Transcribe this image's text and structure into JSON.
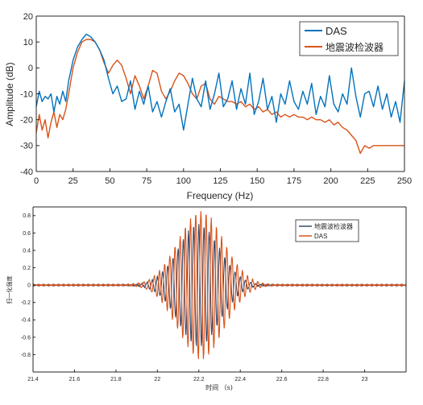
{
  "chart_data": [
    {
      "type": "line",
      "xlabel": "Frequency (Hz)",
      "ylabel": "Amplitude (dB)",
      "xlim": [
        0,
        250
      ],
      "ylim": [
        -40,
        20
      ],
      "xticks": [
        "0",
        "25",
        "50",
        "75",
        "100",
        "125",
        "150",
        "175",
        "200",
        "225",
        "250"
      ],
      "yticks": [
        "20",
        "10",
        "0",
        "-10",
        "-20",
        "-30",
        "-40"
      ],
      "grid": false,
      "legend_position": "top-right",
      "series": [
        {
          "name": "DAS",
          "color": "#0072BD",
          "x": [
            0,
            2,
            4,
            6,
            8,
            10,
            12,
            14,
            16,
            18,
            20,
            22,
            25,
            28,
            31,
            34,
            37,
            40,
            43,
            46,
            49,
            52,
            55,
            58,
            61,
            64,
            67,
            70,
            73,
            76,
            79,
            82,
            85,
            88,
            91,
            94,
            97,
            100,
            103,
            106,
            109,
            112,
            115,
            118,
            121,
            124,
            127,
            130,
            133,
            136,
            139,
            142,
            145,
            148,
            151,
            154,
            157,
            160,
            163,
            166,
            169,
            172,
            175,
            178,
            181,
            184,
            187,
            190,
            193,
            196,
            199,
            202,
            205,
            208,
            211,
            214,
            217,
            220,
            223,
            226,
            229,
            232,
            235,
            238,
            241,
            244,
            247,
            250
          ],
          "y": [
            -15,
            -9,
            -13,
            -11,
            -12,
            -10,
            -17,
            -11,
            -14,
            -9,
            -13,
            -5,
            3,
            8,
            11,
            13,
            12,
            10,
            7,
            3,
            -4,
            -10,
            -7,
            -13,
            -12,
            -5,
            -16,
            -9,
            -14,
            -7,
            -17,
            -13,
            -19,
            -13,
            -8,
            -17,
            -14,
            -24,
            -14,
            -4,
            -12,
            -15,
            -5,
            -16,
            -10,
            -2,
            -15,
            -12,
            -5,
            -16,
            -8,
            -14,
            -2,
            -18,
            -13,
            -4,
            -16,
            -11,
            -21,
            -10,
            -14,
            -5,
            -13,
            -16,
            -9,
            -14,
            -6,
            -18,
            -11,
            -15,
            -3,
            -14,
            -17,
            -10,
            -14,
            0,
            -11,
            -19,
            -10,
            -9,
            -15,
            -7,
            -16,
            -10,
            -19,
            -13,
            -21,
            -5
          ]
        },
        {
          "name": "地震波检波器",
          "color": "#D95319",
          "x": [
            0,
            2,
            4,
            6,
            8,
            10,
            12,
            14,
            16,
            18,
            20,
            22,
            25,
            28,
            31,
            34,
            37,
            40,
            43,
            46,
            49,
            52,
            55,
            58,
            61,
            64,
            67,
            70,
            73,
            76,
            79,
            82,
            85,
            88,
            91,
            94,
            97,
            100,
            103,
            106,
            109,
            112,
            115,
            118,
            121,
            124,
            127,
            130,
            133,
            136,
            139,
            142,
            145,
            148,
            151,
            154,
            157,
            160,
            163,
            166,
            169,
            172,
            175,
            178,
            181,
            184,
            187,
            190,
            193,
            196,
            199,
            202,
            205,
            208,
            211,
            214,
            217,
            220,
            223,
            226,
            229,
            232,
            235,
            238,
            241,
            244,
            247,
            250
          ],
          "y": [
            -25,
            -18,
            -24,
            -20,
            -27,
            -21,
            -17,
            -23,
            -18,
            -20,
            -16,
            -10,
            0,
            6,
            10,
            11,
            11,
            10,
            7,
            2,
            -2,
            1,
            3,
            1,
            -4,
            -10,
            -3,
            -7,
            -12,
            -7,
            -1,
            -2,
            -9,
            -12,
            -9,
            -5,
            -2,
            -3,
            -6,
            -10,
            -12,
            -7,
            -6,
            -12,
            -14,
            -11,
            -12,
            -13,
            -13,
            -14,
            -13,
            -15,
            -14,
            -16,
            -15,
            -17,
            -16,
            -18,
            -17,
            -19,
            -18,
            -19,
            -18,
            -19,
            -19,
            -20,
            -19,
            -20,
            -20,
            -21,
            -20,
            -22,
            -21,
            -23,
            -24,
            -26,
            -28,
            -33,
            -30,
            -31,
            -30,
            -30,
            -30,
            -30,
            -30,
            -30,
            -30,
            -30
          ]
        }
      ]
    },
    {
      "type": "line",
      "xlabel": "时间 （s)",
      "ylabel": "归一化强度",
      "xlim": [
        21.4,
        23.2
      ],
      "ylim": [
        -1,
        0.9
      ],
      "xticks": [
        "21.4",
        "21.6",
        "21.8",
        "22",
        "22.2",
        "22.4",
        "22.6",
        "22.8",
        "23"
      ],
      "yticks": [
        "0.8",
        "0.6",
        "0.4",
        "0.2",
        "0",
        "-0.2",
        "-0.4",
        "-0.6",
        "-0.8"
      ],
      "grid": false,
      "legend_position": "top-right",
      "series": [
        {
          "name": "地震波检波器",
          "color": "#3B4A6B",
          "wavelet": {
            "center": 22.2,
            "frequency": 40,
            "amplitude": 0.7,
            "width": 0.1
          }
        },
        {
          "name": "DAS",
          "color": "#D95319",
          "wavelet": {
            "center": 22.21,
            "frequency": 40,
            "amplitude": 0.85,
            "width": 0.11
          }
        }
      ]
    }
  ]
}
